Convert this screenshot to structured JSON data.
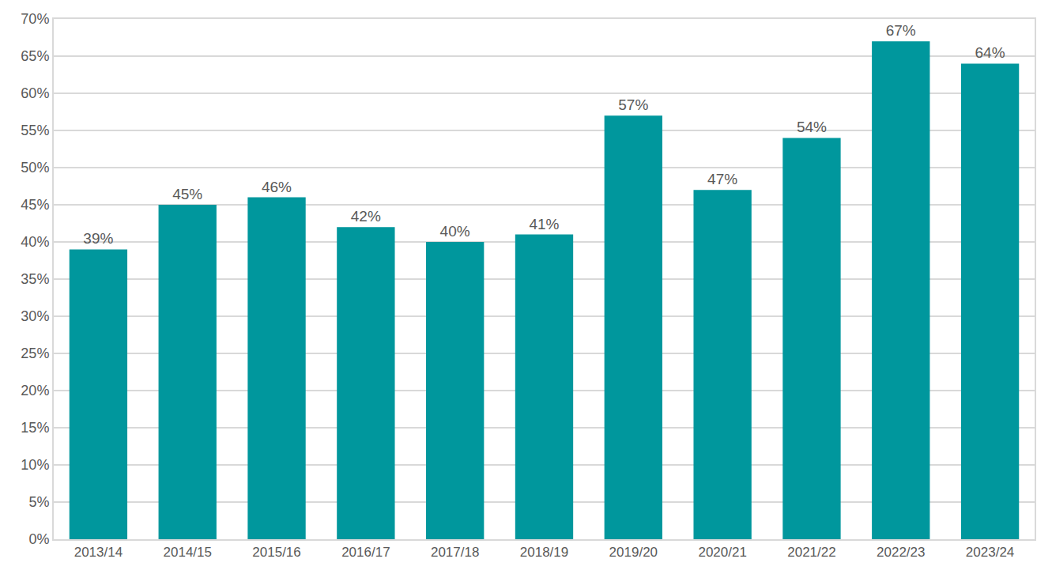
{
  "chart_data": {
    "type": "bar",
    "categories": [
      "2013/14",
      "2014/15",
      "2015/16",
      "2016/17",
      "2017/18",
      "2018/19",
      "2019/20",
      "2020/21",
      "2021/22",
      "2022/23",
      "2023/24"
    ],
    "values": [
      39,
      45,
      46,
      42,
      40,
      41,
      57,
      47,
      54,
      67,
      64
    ],
    "value_labels": [
      "39%",
      "45%",
      "46%",
      "42%",
      "40%",
      "41%",
      "57%",
      "47%",
      "54%",
      "67%",
      "64%"
    ],
    "color": "#00979d",
    "ylim": [
      0,
      70
    ],
    "yticks": [
      {
        "value": 0,
        "label": "0%"
      },
      {
        "value": 5,
        "label": "5%"
      },
      {
        "value": 10,
        "label": "10%"
      },
      {
        "value": 15,
        "label": "15%"
      },
      {
        "value": 20,
        "label": "20%"
      },
      {
        "value": 25,
        "label": "25%"
      },
      {
        "value": 30,
        "label": "30%"
      },
      {
        "value": 35,
        "label": "35%"
      },
      {
        "value": 40,
        "label": "40%"
      },
      {
        "value": 45,
        "label": "45%"
      },
      {
        "value": 50,
        "label": "50%"
      },
      {
        "value": 55,
        "label": "55%"
      },
      {
        "value": 60,
        "label": "60%"
      },
      {
        "value": 65,
        "label": "65%"
      },
      {
        "value": 70,
        "label": "70%"
      }
    ],
    "grid": true,
    "data_labels": true
  }
}
